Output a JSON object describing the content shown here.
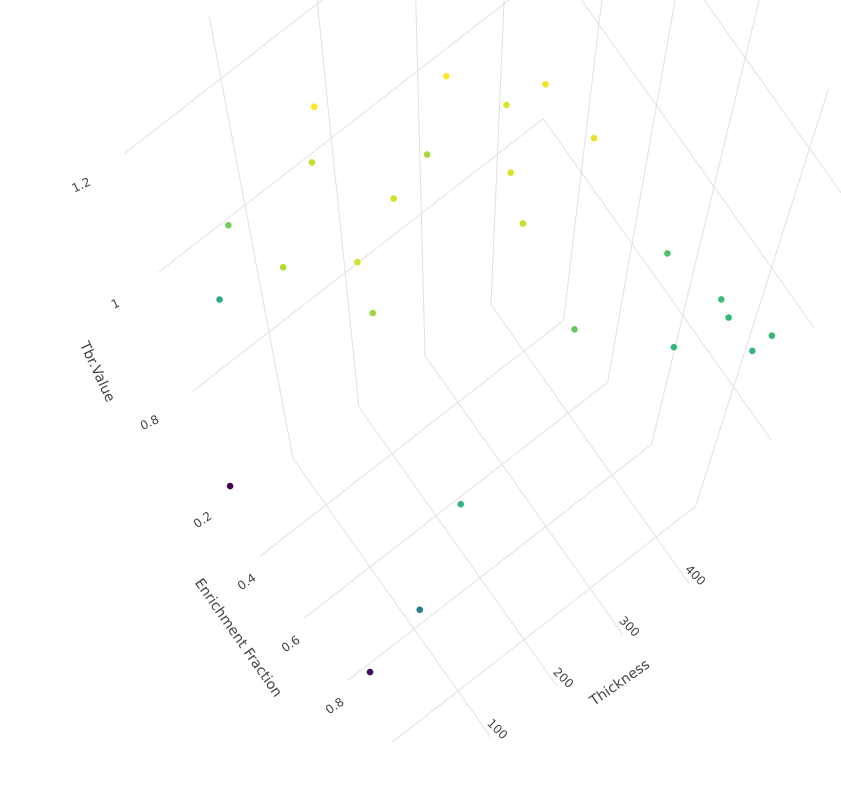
{
  "chart_data": {
    "type": "scatter3d",
    "xlabel": "Thickness",
    "ylabel": "Enrichment Fraction",
    "zlabel": "Tbr.Value",
    "x": [
      237,
      137,
      301,
      272,
      311,
      121,
      210,
      243,
      156,
      51,
      233,
      56,
      102,
      358,
      27,
      99,
      247,
      381,
      381,
      403,
      326,
      381,
      7,
      93,
      37,
      12
    ],
    "y": [
      0.34,
      0.24,
      0.45,
      0.42,
      0.57,
      0.27,
      0.36,
      0.52,
      0.42,
      0.19,
      0.59,
      0.37,
      0.47,
      0.71,
      0.19,
      0.52,
      0.73,
      0.83,
      0.86,
      0.94,
      0.84,
      0.94,
      0.08,
      0.82,
      0.84,
      0.68
    ],
    "z": [
      1.25,
      1.25,
      1.24,
      1.22,
      1.23,
      1.2,
      1.17,
      1.22,
      1.21,
      1.12,
      1.2,
      1.18,
      1.21,
      1.08,
      1.02,
      1.16,
      1.1,
      1.06,
      1.05,
      1.05,
      1.05,
      1.05,
      0.65,
      1.04,
      0.9,
      0.66
    ],
    "colorscale": "viridis",
    "xlim": [
      0,
      460
    ],
    "ylim": [
      0.05,
      0.95
    ],
    "zlim": [
      0.6,
      1.3
    ],
    "xticks": [
      100,
      200,
      300,
      400
    ],
    "yticks": [
      0.2,
      0.4,
      0.6,
      0.8
    ],
    "zticks": [
      0.8,
      1,
      1.2
    ],
    "grid": true
  }
}
